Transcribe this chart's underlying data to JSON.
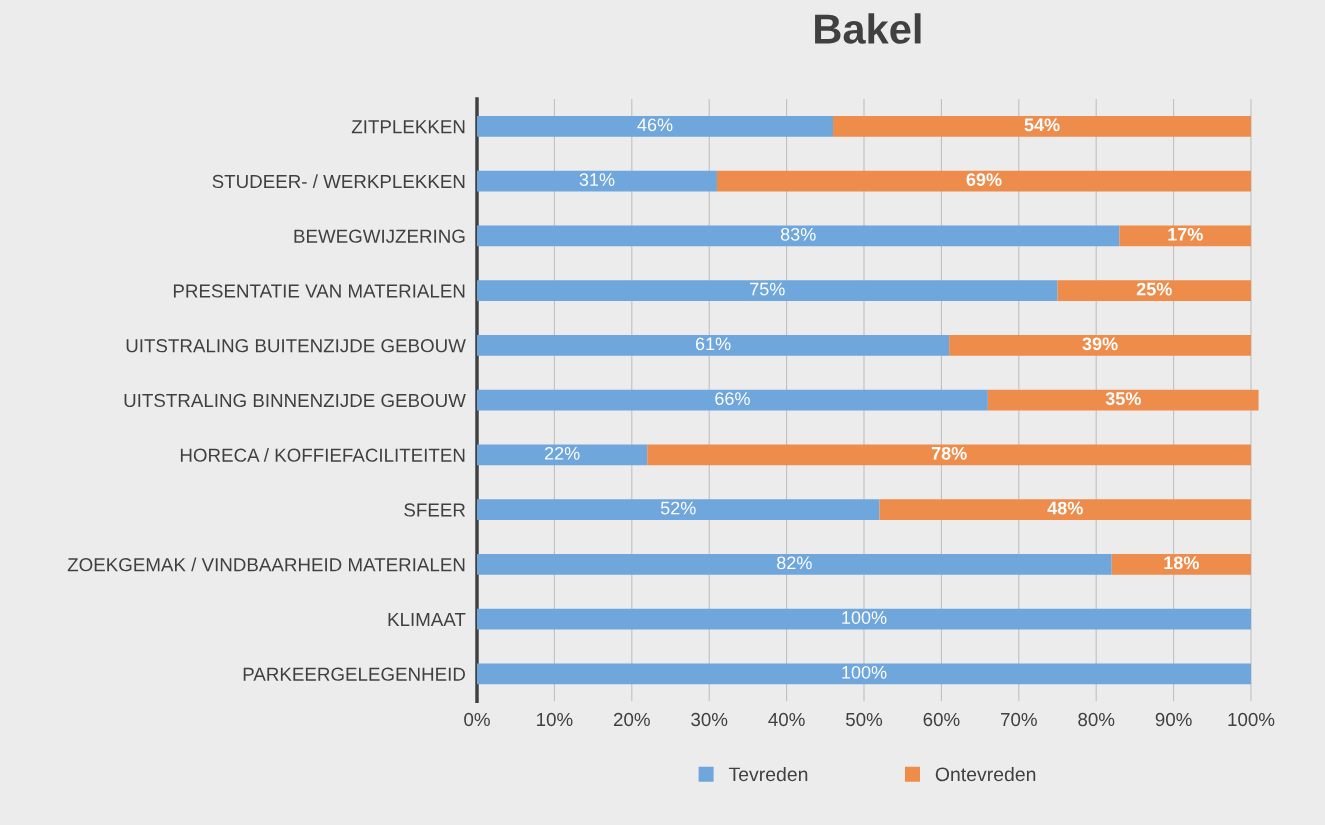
{
  "chart_data": {
    "type": "bar",
    "orientation": "horizontal",
    "stacked": true,
    "title": "Bakel",
    "categories": [
      "ZITPLEKKEN",
      "STUDEER- / WERKPLEKKEN",
      "BEWEGWIJZERING",
      "PRESENTATIE VAN MATERIALEN",
      "UITSTRALING BUITENZIJDE GEBOUW",
      "UITSTRALING BINNENZIJDE GEBOUW",
      "HORECA / KOFFIEFACILITEITEN",
      "SFEER",
      "ZOEKGEMAK / VINDBAARHEID MATERIALEN",
      "KLIMAAT",
      "PARKEERGELEGENHEID"
    ],
    "series": [
      {
        "name": "Tevreden",
        "color": "#6fa6dc",
        "values": [
          46,
          31,
          83,
          75,
          61,
          66,
          22,
          52,
          82,
          100,
          100
        ],
        "value_labels": [
          "46%",
          "31%",
          "83%",
          "75%",
          "61%",
          "66%",
          "22%",
          "52%",
          "82%",
          "100%",
          "100%"
        ]
      },
      {
        "name": "Ontevreden",
        "color": "#ee8c4b",
        "values": [
          54,
          69,
          17,
          25,
          39,
          35,
          78,
          48,
          18,
          null,
          null
        ],
        "value_labels": [
          "54%",
          "69%",
          "17%",
          "25%",
          "39%",
          "35%",
          "78%",
          "48%",
          "18%",
          null,
          null
        ]
      }
    ],
    "xlim": [
      0,
      101
    ],
    "xticks": [
      {
        "value": 0,
        "label": "0%"
      },
      {
        "value": 10,
        "label": "10%"
      },
      {
        "value": 20,
        "label": "20%"
      },
      {
        "value": 30,
        "label": "30%"
      },
      {
        "value": 40,
        "label": "40%"
      },
      {
        "value": 50,
        "label": "50%"
      },
      {
        "value": 60,
        "label": "60%"
      },
      {
        "value": 70,
        "label": "70%"
      },
      {
        "value": 80,
        "label": "80%"
      },
      {
        "value": 90,
        "label": "90%"
      },
      {
        "value": 100,
        "label": "100%"
      }
    ],
    "grid": "x",
    "legend": "bottom"
  }
}
